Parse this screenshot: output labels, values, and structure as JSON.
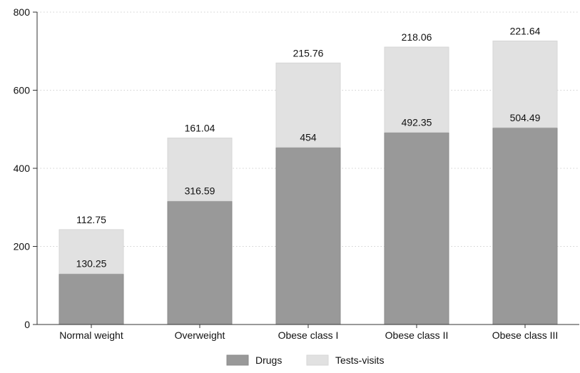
{
  "chart_data": {
    "type": "bar",
    "stacked": true,
    "categories": [
      "Normal weight",
      "Overweight",
      "Obese class I",
      "Obese class II",
      "Obese class III"
    ],
    "series": [
      {
        "name": "Drugs",
        "values": [
          130.25,
          316.59,
          454,
          492.35,
          504.49
        ],
        "color": "#999999"
      },
      {
        "name": "Tests-visits",
        "values": [
          112.75,
          161.04,
          215.76,
          218.06,
          221.64
        ],
        "color": "#e1e1e1"
      }
    ],
    "data_labels": [
      [
        "130.25",
        "316.59",
        "454",
        "492.35",
        "504.49"
      ],
      [
        "112.75",
        "161.04",
        "215.76",
        "218.06",
        "221.64"
      ]
    ],
    "yticks": [
      0,
      200,
      400,
      600,
      800
    ],
    "ylim": [
      0,
      800
    ],
    "grid": true,
    "legend": "bottom"
  }
}
